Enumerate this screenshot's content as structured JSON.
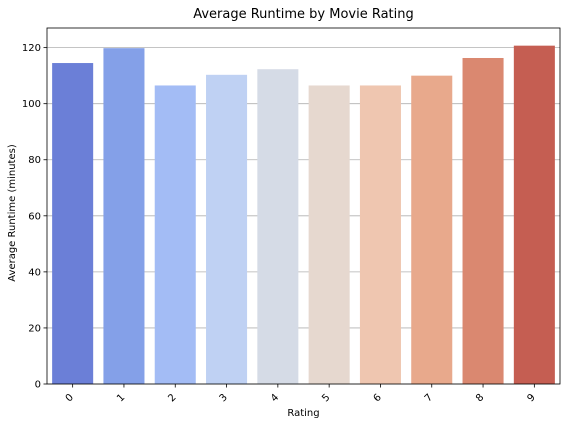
{
  "chart_data": {
    "type": "bar",
    "title": "Average Runtime by Movie Rating",
    "xlabel": "Rating",
    "ylabel": "Average Runtime (minutes)",
    "categories": [
      "0",
      "1",
      "2",
      "3",
      "4",
      "5",
      "6",
      "7",
      "8",
      "9"
    ],
    "values": [
      114.5,
      119.8,
      106.5,
      110.3,
      112.3,
      106.5,
      106.5,
      110.0,
      116.3,
      120.7
    ],
    "ylim": [
      0,
      127
    ],
    "yticks": [
      0,
      20,
      40,
      60,
      80,
      100,
      120
    ],
    "grid": "horizontal",
    "xtick_rotation": 45,
    "colors": [
      "#6b7fd7",
      "#84a0e8",
      "#a3bcf5",
      "#bfd1f3",
      "#d5dbe6",
      "#e6d8cf",
      "#efc6b0",
      "#e8a98c",
      "#da8870",
      "#c55e52"
    ]
  }
}
